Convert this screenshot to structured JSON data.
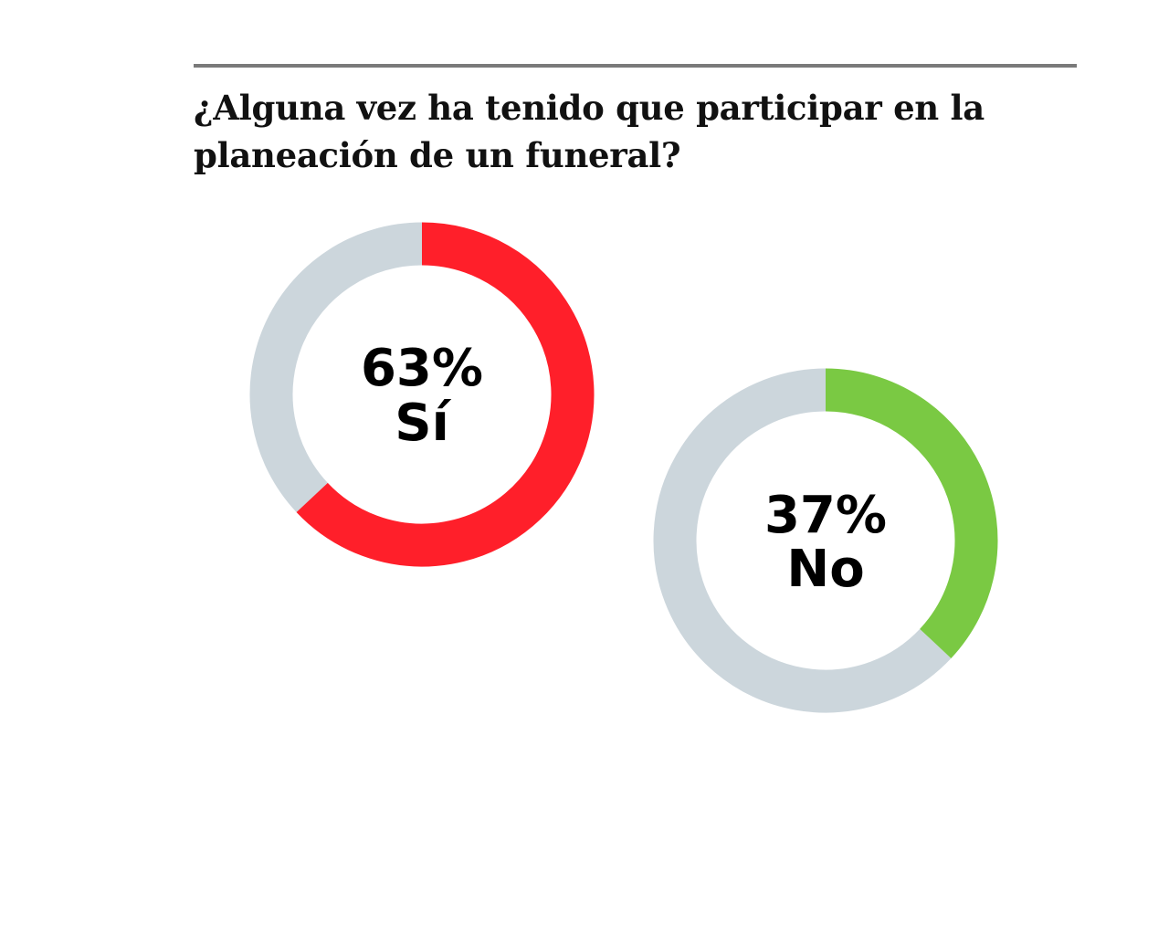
{
  "chart_data": {
    "type": "pie",
    "title": "¿Alguna vez ha tenido que participar en la planeación de un funeral?",
    "charts": [
      {
        "value": 63,
        "value_label": "63%",
        "category": "Sí",
        "color": "#ff1f2a",
        "remainder_color": "#ccd6dc"
      },
      {
        "value": 37,
        "value_label": "37%",
        "category": "No",
        "color": "#7ac943",
        "remainder_color": "#ccd6dc"
      }
    ]
  }
}
